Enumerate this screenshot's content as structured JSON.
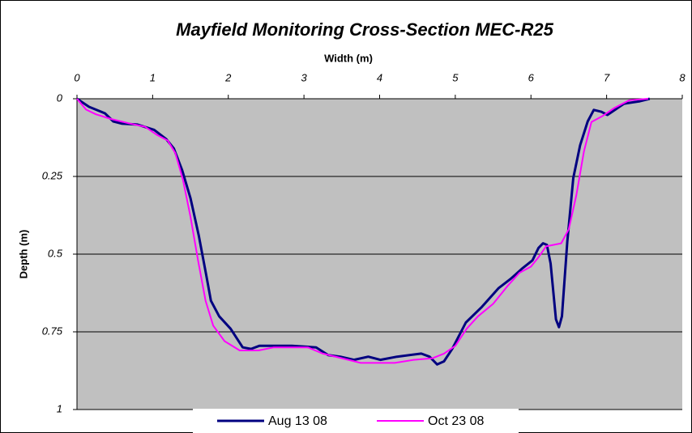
{
  "chart_data": {
    "type": "line",
    "title": "Mayfield Monitoring Cross-Section MEC-R25",
    "x_label": "Width (m)",
    "y_label": "Depth (m)",
    "xlim": [
      0,
      8
    ],
    "xticks": [
      0,
      1,
      2,
      3,
      4,
      5,
      6,
      7,
      8
    ],
    "ylim": [
      0,
      1
    ],
    "yticks": [
      0,
      0.25,
      0.5,
      0.75,
      1
    ],
    "y_inverted": true,
    "x_axis_position": "top",
    "grid": true,
    "legend": "bottom",
    "series": [
      {
        "name": "Aug 13 08",
        "color": "#000080",
        "x": [
          0,
          0.16,
          0.37,
          0.48,
          0.59,
          0.8,
          1.02,
          1.18,
          1.28,
          1.39,
          1.5,
          1.61,
          1.71,
          1.77,
          1.88,
          2.03,
          2.19,
          2.3,
          2.41,
          2.84,
          3.16,
          3.32,
          3.48,
          3.66,
          3.85,
          4.01,
          4.23,
          4.55,
          4.66,
          4.76,
          4.85,
          4.96,
          5.14,
          5.35,
          5.57,
          5.73,
          5.89,
          6.02,
          6.1,
          6.16,
          6.21,
          6.26,
          6.33,
          6.37,
          6.41,
          6.48,
          6.56,
          6.65,
          6.75,
          6.83,
          6.93,
          7.01,
          7.12,
          7.23,
          7.44,
          7.57
        ],
        "values": [
          0,
          0.026,
          0.047,
          0.073,
          0.08,
          0.083,
          0.1,
          0.13,
          0.16,
          0.23,
          0.32,
          0.44,
          0.57,
          0.65,
          0.7,
          0.74,
          0.8,
          0.805,
          0.795,
          0.795,
          0.8,
          0.825,
          0.83,
          0.84,
          0.83,
          0.84,
          0.83,
          0.82,
          0.83,
          0.855,
          0.845,
          0.805,
          0.72,
          0.67,
          0.61,
          0.58,
          0.545,
          0.52,
          0.48,
          0.465,
          0.47,
          0.53,
          0.71,
          0.735,
          0.7,
          0.46,
          0.255,
          0.15,
          0.073,
          0.036,
          0.042,
          0.052,
          0.034,
          0.016,
          0.008,
          0
        ]
      },
      {
        "name": "Oct 23 08",
        "color": "#ff00ff",
        "x": [
          0,
          0.12,
          0.25,
          0.45,
          0.7,
          0.9,
          1.05,
          1.2,
          1.3,
          1.4,
          1.5,
          1.6,
          1.7,
          1.8,
          1.95,
          2.15,
          2.4,
          2.6,
          3.05,
          3.25,
          3.5,
          3.75,
          4.2,
          4.45,
          4.7,
          4.85,
          5.0,
          5.15,
          5.3,
          5.5,
          5.7,
          5.85,
          6.0,
          6.1,
          6.2,
          6.4,
          6.5,
          6.6,
          6.7,
          6.8,
          6.95,
          7.1,
          7.3,
          7.55
        ],
        "values": [
          0,
          0.035,
          0.05,
          0.065,
          0.08,
          0.09,
          0.115,
          0.135,
          0.175,
          0.26,
          0.38,
          0.52,
          0.65,
          0.73,
          0.78,
          0.81,
          0.81,
          0.8,
          0.8,
          0.82,
          0.835,
          0.85,
          0.85,
          0.84,
          0.835,
          0.82,
          0.795,
          0.74,
          0.7,
          0.66,
          0.6,
          0.56,
          0.54,
          0.51,
          0.475,
          0.465,
          0.42,
          0.31,
          0.17,
          0.075,
          0.055,
          0.03,
          0.005,
          0
        ]
      }
    ]
  }
}
